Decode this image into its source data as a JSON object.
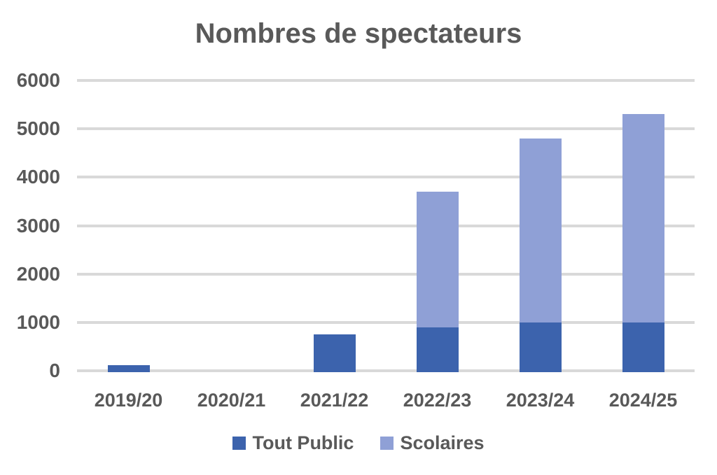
{
  "chart_data": {
    "type": "bar",
    "stacked": true,
    "title": "Nombres de spectateurs",
    "categories": [
      "2019/20",
      "2020/21",
      "2021/22",
      "2022/23",
      "2023/24",
      "2024/25"
    ],
    "series": [
      {
        "name": "Tout Public",
        "color": "#3C63AD",
        "values": [
          120,
          0,
          750,
          900,
          1000,
          1000
        ]
      },
      {
        "name": "Scolaires",
        "color": "#8FA0D6",
        "values": [
          0,
          0,
          0,
          2800,
          3800,
          4300
        ]
      }
    ],
    "totals": [
      120,
      0,
      750,
      3700,
      4800,
      5300
    ],
    "xlabel": "",
    "ylabel": "",
    "ylim": [
      0,
      6000
    ],
    "yticks": [
      0,
      1000,
      2000,
      3000,
      4000,
      5000,
      6000
    ],
    "grid": "horizontal",
    "gridline_color": "#D9D9D9",
    "text_color": "#595959",
    "background_color": "#ffffff",
    "legend_position": "bottom"
  }
}
